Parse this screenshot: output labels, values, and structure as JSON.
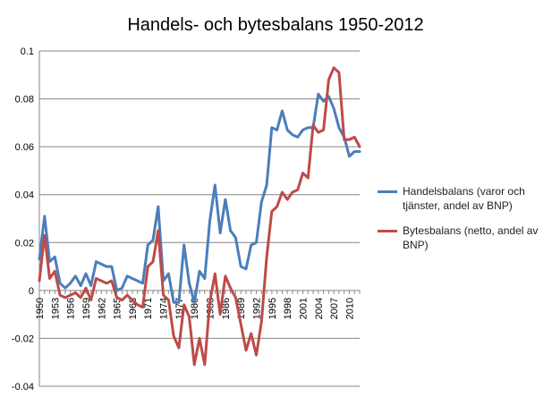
{
  "chart_data": {
    "type": "line",
    "title": "Handels- och bytesbalans 1950-2012",
    "xlabel": "",
    "ylabel": "",
    "ylim": [
      -0.04,
      0.1
    ],
    "yticks": [
      -0.04,
      -0.02,
      0,
      0.02,
      0.04,
      0.06,
      0.08,
      0.1
    ],
    "ytick_labels": [
      "-0.04",
      "-0.02",
      "0",
      "0.02",
      "0.04",
      "0.06",
      "0.08",
      "0.1"
    ],
    "xtick_labels": [
      "1950",
      "1953",
      "1956",
      "1959",
      "1962",
      "1965",
      "1968",
      "1971",
      "1974",
      "1977",
      "1980",
      "1983",
      "1986",
      "1989",
      "1992",
      "1995",
      "1998",
      "2001",
      "2004",
      "2007",
      "2010"
    ],
    "grid": true,
    "legend_position": "right",
    "x": [
      1950,
      1951,
      1952,
      1953,
      1954,
      1955,
      1956,
      1957,
      1958,
      1959,
      1960,
      1961,
      1962,
      1963,
      1964,
      1965,
      1966,
      1967,
      1968,
      1969,
      1970,
      1971,
      1972,
      1973,
      1974,
      1975,
      1976,
      1977,
      1978,
      1979,
      1980,
      1981,
      1982,
      1983,
      1984,
      1985,
      1986,
      1987,
      1988,
      1989,
      1990,
      1991,
      1992,
      1993,
      1994,
      1995,
      1996,
      1997,
      1998,
      1999,
      2000,
      2001,
      2002,
      2003,
      2004,
      2005,
      2006,
      2007,
      2008,
      2009,
      2010,
      2011,
      2012
    ],
    "series": [
      {
        "name": "Handelsbalans (varor och tjänster, andel av BNP)",
        "color": "#4a7ebb",
        "values": [
          0.013,
          0.031,
          0.012,
          0.014,
          0.003,
          0.001,
          0.003,
          0.006,
          0.002,
          0.007,
          0.002,
          0.012,
          0.011,
          0.01,
          0.01,
          0.0,
          0.001,
          0.006,
          0.005,
          0.004,
          0.003,
          0.019,
          0.021,
          0.035,
          0.004,
          0.007,
          -0.005,
          -0.005,
          0.019,
          0.003,
          -0.005,
          0.008,
          0.005,
          0.029,
          0.044,
          0.024,
          0.038,
          0.025,
          0.022,
          0.01,
          0.009,
          0.019,
          0.02,
          0.037,
          0.044,
          0.068,
          0.067,
          0.075,
          0.067,
          0.065,
          0.064,
          0.067,
          0.068,
          0.068,
          0.082,
          0.079,
          0.081,
          0.076,
          0.068,
          0.064,
          0.056,
          0.058,
          0.058
        ]
      },
      {
        "name": "Bytesbalans (netto, andel av BNP)",
        "color": "#be4b48",
        "values": [
          0.004,
          0.023,
          0.005,
          0.008,
          -0.002,
          -0.003,
          -0.002,
          -0.001,
          -0.003,
          0.001,
          -0.004,
          0.005,
          0.004,
          0.003,
          0.004,
          -0.003,
          -0.004,
          -0.002,
          -0.004,
          -0.006,
          -0.007,
          0.01,
          0.012,
          0.025,
          -0.002,
          -0.004,
          -0.019,
          -0.024,
          -0.006,
          -0.011,
          -0.031,
          -0.02,
          -0.031,
          -0.005,
          0.007,
          -0.01,
          0.006,
          0.001,
          -0.003,
          -0.014,
          -0.025,
          -0.018,
          -0.027,
          -0.013,
          0.014,
          0.033,
          0.035,
          0.041,
          0.038,
          0.041,
          0.042,
          0.049,
          0.047,
          0.069,
          0.066,
          0.067,
          0.088,
          0.093,
          0.091,
          0.063,
          0.063,
          0.064,
          0.06
        ]
      }
    ]
  }
}
